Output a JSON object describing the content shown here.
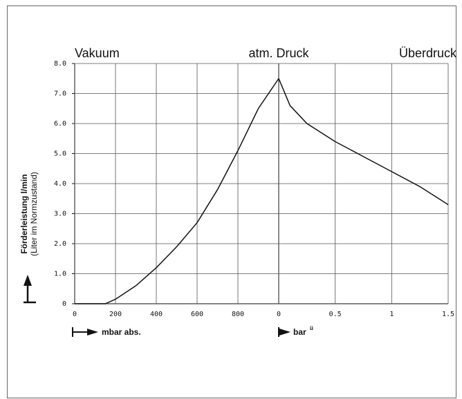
{
  "chart_data": [
    {
      "type": "line",
      "title_left": "Vakuum",
      "title_center": "atm. Druck",
      "y_label": "Förderleistung l/min",
      "y_label_sub": "(Liter im Normzustand)",
      "x_label": "mbar abs.",
      "x": [
        0,
        150,
        200,
        300,
        400,
        500,
        600,
        700,
        800,
        900,
        1000
      ],
      "values": [
        0,
        0,
        0.15,
        0.6,
        1.2,
        1.9,
        2.7,
        3.8,
        5.1,
        6.5,
        7.5
      ],
      "color": "#111",
      "xlim": [
        0,
        1000
      ],
      "xticks": [
        0,
        200,
        400,
        600,
        800
      ],
      "ylim": [
        0,
        8
      ],
      "yticks": [
        0,
        {
          "value": 1,
          "label": "1.0"
        },
        {
          "value": 2,
          "label": "2.0"
        },
        {
          "value": 3,
          "label": "3.0"
        },
        {
          "value": 4,
          "label": "4.0"
        },
        {
          "value": 5,
          "label": "5.0"
        },
        {
          "value": 6,
          "label": "6.0"
        },
        {
          "value": 7,
          "label": "7.0"
        },
        {
          "value": 8,
          "label": "8.0"
        }
      ],
      "grid": true
    },
    {
      "type": "line",
      "title_right": "Überdruck",
      "x_label": "bar",
      "x_label_sup": "ü",
      "x": [
        0,
        0.1,
        0.25,
        0.5,
        0.75,
        1.0,
        1.25,
        1.5
      ],
      "values": [
        7.5,
        6.6,
        6.0,
        5.4,
        4.9,
        4.4,
        3.9,
        3.3
      ],
      "color": "#111",
      "xlim": [
        0,
        1.5
      ],
      "xticks": [
        0,
        0.5,
        1.0,
        1.5
      ],
      "ylim": [
        0,
        8
      ],
      "grid": true
    }
  ]
}
